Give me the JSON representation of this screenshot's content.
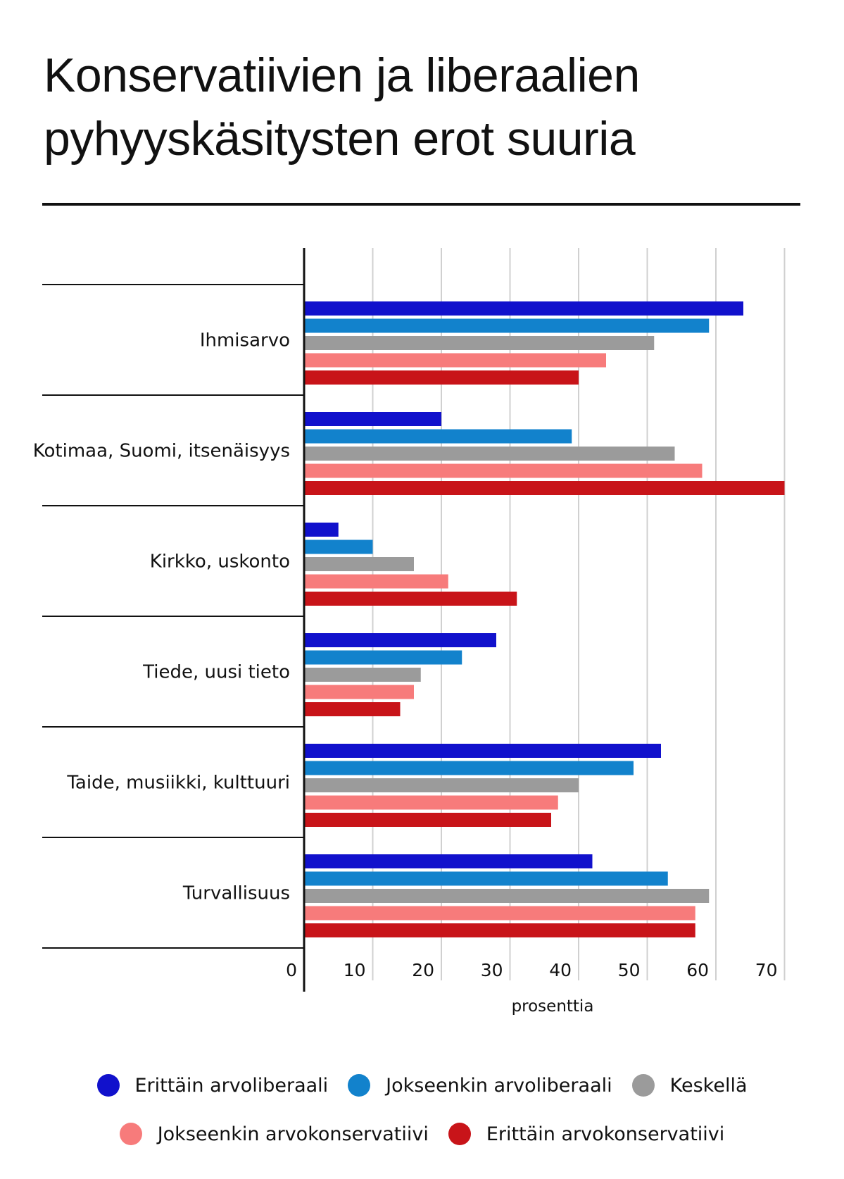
{
  "title_lines": [
    "Konservatiivien ja liberaalien",
    "pyhyyskäsitysten erot suuria"
  ],
  "chart_data": {
    "type": "bar",
    "orientation": "horizontal",
    "title": "Konservatiivien ja liberaalien pyhyyskäsitysten erot suuria",
    "xlabel": "prosenttia",
    "ylabel": "",
    "xlim": [
      0,
      70
    ],
    "xticks": [
      0,
      10,
      20,
      30,
      40,
      50,
      60,
      70
    ],
    "grid": true,
    "legend_position": "bottom",
    "categories": [
      "Ihmisarvo",
      "Kotimaa, Suomi, itsenäisyys",
      "Kirkko, uskonto",
      "Tiede, uusi tieto",
      "Taide, musiikki, kulttuuri",
      "Turvallisuus"
    ],
    "series": [
      {
        "name": "Erittäin arvoliberaali",
        "color": "#1111cc",
        "values": [
          64,
          20,
          5,
          28,
          52,
          42
        ]
      },
      {
        "name": "Jokseenkin arvoliberaali",
        "color": "#1282cc",
        "values": [
          59,
          39,
          10,
          23,
          48,
          53
        ]
      },
      {
        "name": "Keskellä",
        "color": "#9b9b9b",
        "values": [
          51,
          54,
          16,
          17,
          40,
          59
        ]
      },
      {
        "name": "Jokseenkin arvokonservatiivi",
        "color": "#f77b7b",
        "values": [
          44,
          58,
          21,
          16,
          37,
          57
        ]
      },
      {
        "name": "Erittäin arvokonservatiivi",
        "color": "#c81419",
        "values": [
          40,
          70,
          31,
          14,
          36,
          57
        ]
      }
    ]
  }
}
